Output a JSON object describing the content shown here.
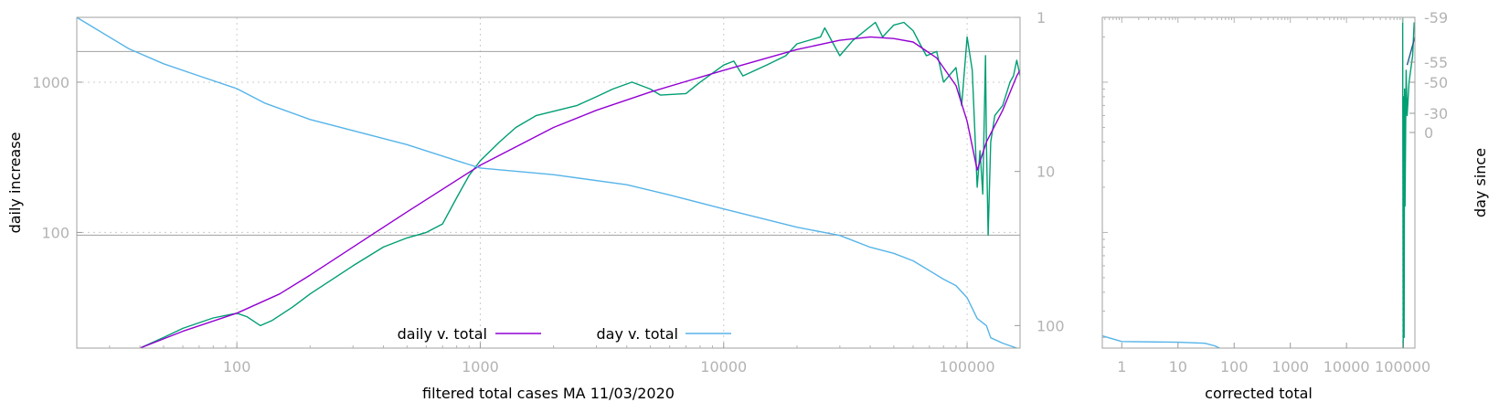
{
  "chart_data": [
    {
      "type": "line",
      "xlabel": "filtered total cases MA 11/03/2020",
      "ylabel": "daily increase",
      "y2label": "",
      "xscale": "log",
      "yscale": "log",
      "y2scale": "log",
      "y2_reversed": true,
      "xlim": [
        22,
        165000
      ],
      "ylim": [
        17,
        2700
      ],
      "y2lim": [
        1,
        140
      ],
      "x_ticks": [
        100,
        1000,
        10000,
        100000
      ],
      "x_tick_labels": [
        "100",
        "1000",
        "10000",
        "100000"
      ],
      "y_ticks": [
        100,
        1000
      ],
      "y_tick_labels": [
        "100",
        "1000"
      ],
      "y2_ticks": [
        1,
        10,
        100
      ],
      "y2_tick_labels": [
        "1",
        "10",
        "100"
      ],
      "y_hlines": [
        1600,
        96
      ],
      "grid": "dotted",
      "legend_position": "bottom-center",
      "series": [
        {
          "name": "",
          "axis": "y",
          "color": "#009e73",
          "points": [
            [
              40,
              17
            ],
            [
              50,
              20
            ],
            [
              60,
              23
            ],
            [
              80,
              27
            ],
            [
              100,
              29
            ],
            [
              110,
              27.5
            ],
            [
              125,
              24
            ],
            [
              140,
              26
            ],
            [
              170,
              32
            ],
            [
              200,
              39
            ],
            [
              300,
              60
            ],
            [
              400,
              80
            ],
            [
              500,
              92
            ],
            [
              600,
              100
            ],
            [
              700,
              114
            ],
            [
              800,
              170
            ],
            [
              900,
              240
            ],
            [
              1000,
              300
            ],
            [
              1200,
              400
            ],
            [
              1400,
              500
            ],
            [
              1700,
              600
            ],
            [
              2000,
              640
            ],
            [
              2500,
              700
            ],
            [
              3000,
              800
            ],
            [
              3500,
              900
            ],
            [
              4200,
              1000
            ],
            [
              5000,
              900
            ],
            [
              5500,
              820
            ],
            [
              7000,
              840
            ],
            [
              8000,
              1000
            ],
            [
              10000,
              1300
            ],
            [
              11000,
              1380
            ],
            [
              12000,
              1100
            ],
            [
              15000,
              1300
            ],
            [
              18000,
              1500
            ],
            [
              20000,
              1800
            ],
            [
              25000,
              2000
            ],
            [
              26000,
              2300
            ],
            [
              30000,
              1500
            ],
            [
              34000,
              1900
            ],
            [
              42000,
              2500
            ],
            [
              45000,
              2000
            ],
            [
              50000,
              2400
            ],
            [
              55000,
              2500
            ],
            [
              60000,
              2200
            ],
            [
              64000,
              1800
            ],
            [
              68000,
              1500
            ],
            [
              75000,
              1600
            ],
            [
              80000,
              1000
            ],
            [
              90000,
              1250
            ],
            [
              95000,
              700
            ],
            [
              100000,
              2000
            ],
            [
              105000,
              1200
            ],
            [
              110000,
              200
            ],
            [
              113000,
              350
            ],
            [
              116000,
              180
            ],
            [
              119000,
              1500
            ],
            [
              120000,
              400
            ],
            [
              122000,
              96
            ],
            [
              125000,
              400
            ],
            [
              130000,
              600
            ],
            [
              140000,
              700
            ],
            [
              150000,
              1000
            ],
            [
              155000,
              1100
            ],
            [
              160000,
              1400
            ],
            [
              165000,
              1100
            ]
          ]
        },
        {
          "name": "daily v. total",
          "axis": "y",
          "color": "#9400d3",
          "points": [
            [
              40,
              17
            ],
            [
              60,
              22
            ],
            [
              100,
              29
            ],
            [
              150,
              39
            ],
            [
              200,
              52
            ],
            [
              300,
              80
            ],
            [
              500,
              137
            ],
            [
              1000,
              280
            ],
            [
              2000,
              500
            ],
            [
              3000,
              650
            ],
            [
              5000,
              860
            ],
            [
              10000,
              1200
            ],
            [
              20000,
              1650
            ],
            [
              30000,
              1900
            ],
            [
              40000,
              2000
            ],
            [
              50000,
              1950
            ],
            [
              60000,
              1850
            ],
            [
              75000,
              1450
            ],
            [
              90000,
              950
            ],
            [
              100000,
              550
            ],
            [
              110000,
              260
            ],
            [
              120000,
              400
            ],
            [
              140000,
              650
            ],
            [
              160000,
              1100
            ],
            [
              165000,
              1200
            ]
          ]
        },
        {
          "name": "day v. total",
          "axis": "y2",
          "color": "#56b4e9",
          "points": [
            [
              22,
              1
            ],
            [
              36,
              1.6
            ],
            [
              50,
              2
            ],
            [
              70,
              2.4
            ],
            [
              100,
              2.9
            ],
            [
              130,
              3.6
            ],
            [
              200,
              4.6
            ],
            [
              500,
              6.7
            ],
            [
              800,
              8.5
            ],
            [
              1000,
              9.5
            ],
            [
              2000,
              10.5
            ],
            [
              4000,
              12.2
            ],
            [
              6000,
              14.2
            ],
            [
              10000,
              17.5
            ],
            [
              20000,
              23
            ],
            [
              30000,
              26
            ],
            [
              40000,
              31
            ],
            [
              50000,
              34
            ],
            [
              60000,
              38
            ],
            [
              70000,
              44
            ],
            [
              80000,
              50
            ],
            [
              90000,
              55
            ],
            [
              100000,
              66
            ],
            [
              110000,
              90
            ],
            [
              120000,
              100
            ],
            [
              125000,
              120
            ],
            [
              140000,
              130
            ],
            [
              160000,
              140
            ]
          ]
        }
      ]
    },
    {
      "type": "line",
      "xlabel": "corrected total",
      "ylabel": "",
      "y2label": "day since",
      "xscale": "log",
      "yscale": "log",
      "xlim": [
        0.45,
        165000
      ],
      "ylim": [
        17,
        2700
      ],
      "x_ticks": [
        1,
        10,
        100,
        1000,
        10000,
        100000
      ],
      "x_tick_labels": [
        "1",
        "10",
        "100",
        "1000",
        "10000",
        "100000"
      ],
      "y2_tick_labels": [
        "-59",
        "-55",
        "-50",
        "-30",
        "0"
      ],
      "series": [
        {
          "name": "",
          "axis": "y",
          "color": "#009e73",
          "points": [
            [
              100000,
              2700
            ],
            [
              102000,
              17
            ],
            [
              104000,
              800
            ],
            [
              106000,
              20
            ],
            [
              108000,
              900
            ],
            [
              110000,
              150
            ],
            [
              115000,
              1200
            ],
            [
              120000,
              600
            ],
            [
              130000,
              1000
            ],
            [
              150000,
              1500
            ],
            [
              160000,
              2500
            ]
          ]
        },
        {
          "name": "",
          "axis": "y",
          "color": "#56b4e9",
          "points": [
            [
              0.45,
              20.5
            ],
            [
              1,
              18.8
            ],
            [
              10,
              18.6
            ],
            [
              30,
              18.3
            ],
            [
              45,
              17.6
            ],
            [
              55,
              17
            ]
          ]
        },
        {
          "name": "",
          "axis": "y",
          "color": "#1e5a8c",
          "points": [
            [
              120000,
              1300
            ],
            [
              140000,
              1600
            ],
            [
              165000,
              2000
            ]
          ]
        }
      ]
    }
  ]
}
